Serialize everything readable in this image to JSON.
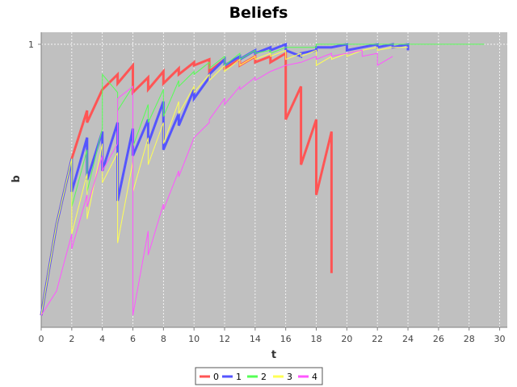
{
  "chart_data": {
    "type": "line",
    "title": "Beliefs",
    "xlabel": "t",
    "ylabel": "b",
    "xlim": [
      0,
      30.5
    ],
    "ylim": [
      0.06,
      1.04
    ],
    "x_ticks": [
      0,
      2,
      4,
      6,
      8,
      10,
      12,
      14,
      16,
      18,
      20,
      22,
      24,
      26,
      28,
      30
    ],
    "y_ticks": [
      1
    ],
    "grid": true,
    "background": "#c0c0c0",
    "legend_position": "bottom-center",
    "series": [
      {
        "name": "0",
        "color": "#ff5555",
        "width": 3,
        "points": [
          [
            0,
            0.1
          ],
          [
            1,
            0.4
          ],
          [
            2,
            0.62
          ],
          [
            3,
            0.78
          ],
          [
            3,
            0.74
          ],
          [
            4,
            0.85
          ],
          [
            5,
            0.9
          ],
          [
            5,
            0.87
          ],
          [
            6,
            0.93
          ],
          [
            6,
            0.84
          ],
          [
            7,
            0.89
          ],
          [
            7,
            0.85
          ],
          [
            8,
            0.91
          ],
          [
            8,
            0.87
          ],
          [
            9,
            0.92
          ],
          [
            9,
            0.9
          ],
          [
            10,
            0.94
          ],
          [
            10,
            0.93
          ],
          [
            11,
            0.95
          ],
          [
            11,
            0.91
          ],
          [
            12,
            0.95
          ],
          [
            12,
            0.92
          ],
          [
            13,
            0.95
          ],
          [
            13,
            0.93
          ],
          [
            14,
            0.96
          ],
          [
            14,
            0.94
          ],
          [
            15,
            0.96
          ],
          [
            15,
            0.94
          ],
          [
            16,
            0.97
          ],
          [
            16,
            0.75
          ],
          [
            17,
            0.86
          ],
          [
            17,
            0.6
          ],
          [
            18,
            0.75
          ],
          [
            18,
            0.5
          ],
          [
            19,
            0.71
          ],
          [
            19,
            0.24
          ]
        ]
      },
      {
        "name": "1",
        "color": "#5555ff",
        "width": 3,
        "points": [
          [
            0,
            0.1
          ],
          [
            1,
            0.4
          ],
          [
            2,
            0.62
          ],
          [
            2,
            0.51
          ],
          [
            3,
            0.69
          ],
          [
            3,
            0.55
          ],
          [
            4,
            0.71
          ],
          [
            4,
            0.58
          ],
          [
            5,
            0.74
          ],
          [
            5,
            0.48
          ],
          [
            6,
            0.72
          ],
          [
            6,
            0.63
          ],
          [
            7,
            0.75
          ],
          [
            7,
            0.67
          ],
          [
            8,
            0.81
          ],
          [
            8,
            0.65
          ],
          [
            9,
            0.77
          ],
          [
            9,
            0.73
          ],
          [
            10,
            0.85
          ],
          [
            10,
            0.82
          ],
          [
            11,
            0.89
          ],
          [
            11,
            0.9
          ],
          [
            12,
            0.95
          ],
          [
            12,
            0.93
          ],
          [
            13,
            0.96
          ],
          [
            13,
            0.95
          ],
          [
            14,
            0.98
          ],
          [
            14,
            0.97
          ],
          [
            15,
            0.99
          ],
          [
            15,
            0.98
          ],
          [
            16,
            1.0
          ],
          [
            16,
            0.98
          ],
          [
            17,
            0.96
          ],
          [
            17,
            0.97
          ],
          [
            18,
            0.98
          ],
          [
            18,
            0.99
          ],
          [
            19,
            0.99
          ],
          [
            19,
            0.99
          ],
          [
            20,
            1.0
          ],
          [
            20,
            0.98
          ],
          [
            21,
            0.99
          ],
          [
            21,
            0.99
          ],
          [
            22,
            1.0
          ],
          [
            22,
            0.99
          ],
          [
            23,
            1.0
          ],
          [
            23,
            0.99
          ],
          [
            24,
            1.0
          ],
          [
            24,
            0.98
          ]
        ]
      },
      {
        "name": "2",
        "color": "#55ff55",
        "width": 1,
        "points": [
          [
            0,
            0.1
          ],
          [
            1,
            0.4
          ],
          [
            2,
            0.62
          ],
          [
            2,
            0.46
          ],
          [
            3,
            0.65
          ],
          [
            3,
            0.51
          ],
          [
            4,
            0.72
          ],
          [
            4,
            0.9
          ],
          [
            5,
            0.84
          ],
          [
            5,
            0.78
          ],
          [
            6,
            0.86
          ],
          [
            6,
            0.66
          ],
          [
            7,
            0.8
          ],
          [
            7,
            0.74
          ],
          [
            8,
            0.85
          ],
          [
            8,
            0.76
          ],
          [
            9,
            0.88
          ],
          [
            9,
            0.86
          ],
          [
            10,
            0.91
          ],
          [
            10,
            0.9
          ],
          [
            11,
            0.94
          ],
          [
            11,
            0.92
          ],
          [
            12,
            0.96
          ],
          [
            12,
            0.93
          ],
          [
            13,
            0.97
          ],
          [
            13,
            0.95
          ],
          [
            14,
            0.98
          ],
          [
            14,
            0.97
          ],
          [
            15,
            0.98
          ],
          [
            15,
            0.97
          ],
          [
            16,
            0.99
          ],
          [
            16,
            0.99
          ],
          [
            17,
            0.99
          ],
          [
            17,
            0.99
          ],
          [
            18,
            0.99
          ],
          [
            18,
            1.0
          ],
          [
            19,
            1.0
          ],
          [
            19,
            1.0
          ],
          [
            20,
            1.0
          ],
          [
            20,
            1.0
          ],
          [
            21,
            1.0
          ],
          [
            21,
            1.0
          ],
          [
            22,
            1.0
          ],
          [
            22,
            1.0
          ],
          [
            23,
            1.0
          ],
          [
            23,
            1.0
          ],
          [
            24,
            1.0
          ],
          [
            25,
            1.0
          ],
          [
            26,
            1.0
          ],
          [
            27,
            1.0
          ],
          [
            28,
            1.0
          ],
          [
            29,
            1.0
          ]
        ]
      },
      {
        "name": "3",
        "color": "#ffff55",
        "width": 1,
        "points": [
          [
            0,
            0.1
          ],
          [
            1,
            0.4
          ],
          [
            2,
            0.62
          ],
          [
            2,
            0.37
          ],
          [
            3,
            0.57
          ],
          [
            3,
            0.42
          ],
          [
            4,
            0.67
          ],
          [
            4,
            0.54
          ],
          [
            5,
            0.64
          ],
          [
            5,
            0.34
          ],
          [
            6,
            0.61
          ],
          [
            6,
            0.51
          ],
          [
            7,
            0.69
          ],
          [
            7,
            0.6
          ],
          [
            8,
            0.74
          ],
          [
            8,
            0.67
          ],
          [
            9,
            0.81
          ],
          [
            9,
            0.77
          ],
          [
            10,
            0.86
          ],
          [
            10,
            0.84
          ],
          [
            11,
            0.9
          ],
          [
            11,
            0.88
          ],
          [
            12,
            0.93
          ],
          [
            12,
            0.91
          ],
          [
            13,
            0.95
          ],
          [
            13,
            0.93
          ],
          [
            14,
            0.96
          ],
          [
            14,
            0.95
          ],
          [
            15,
            0.97
          ],
          [
            15,
            0.96
          ],
          [
            16,
            0.98
          ],
          [
            16,
            0.95
          ],
          [
            17,
            0.97
          ],
          [
            17,
            0.96
          ],
          [
            18,
            0.98
          ],
          [
            18,
            0.93
          ],
          [
            19,
            0.96
          ],
          [
            19,
            0.95
          ],
          [
            20,
            0.97
          ],
          [
            20,
            0.96
          ],
          [
            21,
            0.98
          ],
          [
            21,
            0.98
          ],
          [
            22,
            0.99
          ],
          [
            22,
            0.98
          ],
          [
            23,
            0.99
          ],
          [
            23,
            0.99
          ],
          [
            24,
            0.99
          ]
        ]
      },
      {
        "name": "4",
        "color": "#ff55ff",
        "width": 1,
        "points": [
          [
            0,
            0.1
          ],
          [
            1,
            0.18
          ],
          [
            2,
            0.37
          ],
          [
            2,
            0.32
          ],
          [
            3,
            0.5
          ],
          [
            3,
            0.46
          ],
          [
            4,
            0.63
          ],
          [
            4,
            0.58
          ],
          [
            5,
            0.67
          ],
          [
            5,
            0.82
          ],
          [
            6,
            0.86
          ],
          [
            6,
            0.1
          ],
          [
            7,
            0.38
          ],
          [
            7,
            0.3
          ],
          [
            8,
            0.47
          ],
          [
            8,
            0.45
          ],
          [
            9,
            0.58
          ],
          [
            9,
            0.56
          ],
          [
            10,
            0.69
          ],
          [
            10,
            0.69
          ],
          [
            11,
            0.74
          ],
          [
            11,
            0.75
          ],
          [
            12,
            0.82
          ],
          [
            12,
            0.8
          ],
          [
            13,
            0.86
          ],
          [
            13,
            0.85
          ],
          [
            14,
            0.89
          ],
          [
            14,
            0.88
          ],
          [
            15,
            0.91
          ],
          [
            15,
            0.91
          ],
          [
            16,
            0.93
          ],
          [
            16,
            0.93
          ],
          [
            17,
            0.94
          ],
          [
            17,
            0.94
          ],
          [
            18,
            0.96
          ],
          [
            18,
            0.95
          ],
          [
            19,
            0.97
          ],
          [
            19,
            0.96
          ],
          [
            20,
            0.97
          ],
          [
            20,
            0.97
          ],
          [
            21,
            0.98
          ],
          [
            21,
            0.96
          ],
          [
            22,
            0.97
          ],
          [
            22,
            0.93
          ],
          [
            23,
            0.96
          ]
        ]
      }
    ]
  }
}
